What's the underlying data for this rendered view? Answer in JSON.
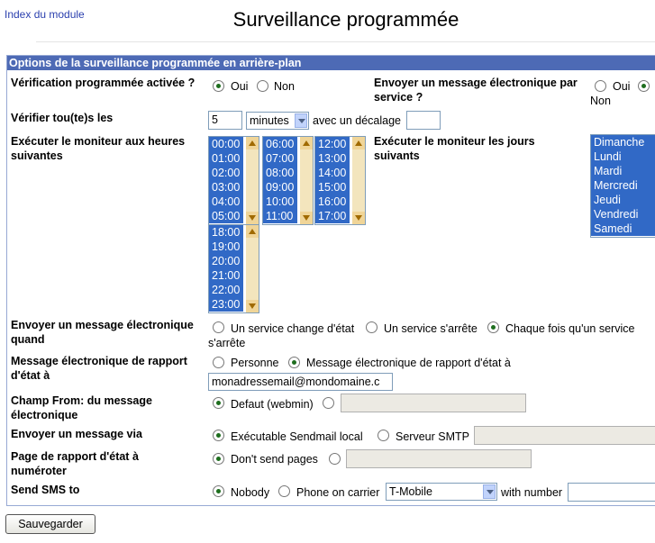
{
  "header": {
    "link": "Index du module",
    "title": "Surveillance programmée"
  },
  "panel": {
    "title": "Options de la surveillance programmée en arrière-plan"
  },
  "fields": {
    "scheduled": {
      "label": "Vérification programmée activée ?",
      "options": [
        "Oui",
        "Non"
      ]
    },
    "per_service": {
      "label": "Envoyer un message électronique par service ?",
      "options": [
        "Oui",
        "Non"
      ]
    },
    "interval": {
      "label": "Vérifier tou(te)s les",
      "value": "5",
      "unit": "minutes",
      "offset_label": "avec un décalage"
    },
    "hours": {
      "label": "Exécuter le moniteur aux heures suivantes",
      "lists": [
        [
          "00:00",
          "01:00",
          "02:00",
          "03:00",
          "04:00",
          "05:00"
        ],
        [
          "06:00",
          "07:00",
          "08:00",
          "09:00",
          "10:00",
          "11:00"
        ],
        [
          "12:00",
          "13:00",
          "14:00",
          "15:00",
          "16:00",
          "17:00"
        ],
        [
          "18:00",
          "19:00",
          "20:00",
          "21:00",
          "22:00",
          "23:00"
        ]
      ]
    },
    "days": {
      "label": "Exécuter le moniteur les jours suivants",
      "options": [
        "Dimanche",
        "Lundi",
        "Mardi",
        "Mercredi",
        "Jeudi",
        "Vendredi",
        "Samedi"
      ]
    },
    "email_when": {
      "label": "Envoyer un message électronique quand",
      "options": [
        "Un service change d'état",
        "Un service s'arrête",
        "Chaque fois qu'un service s'arrête"
      ]
    },
    "report_email": {
      "label": "Message électronique de rapport d'état à",
      "options": [
        "Personne",
        "Message électronique de rapport d'état à"
      ],
      "value": "monadressemail@mondomaine.c"
    },
    "from": {
      "label": "Champ From: du message électronique",
      "options": [
        "Defaut (webmin)"
      ]
    },
    "send_via": {
      "label": "Envoyer un message via",
      "options": [
        "Exécutable Sendmail local",
        "Serveur SMTP"
      ]
    },
    "pager": {
      "label": "Page de rapport d'état à numéroter",
      "options": [
        "Don't send pages"
      ]
    },
    "sms": {
      "label": "Send SMS to",
      "options": [
        "Nobody",
        "Phone on carrier"
      ],
      "carrier": "T-Mobile",
      "number_label": "with number"
    }
  },
  "button": "Sauvegarder"
}
